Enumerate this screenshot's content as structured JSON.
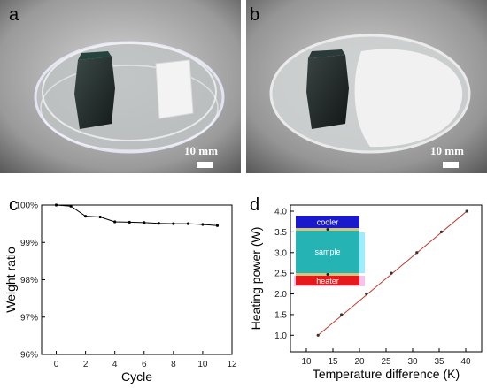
{
  "panels": {
    "a": {
      "letter": "a",
      "scale_label": "10 mm"
    },
    "b": {
      "letter": "b",
      "scale_label": "10 mm"
    },
    "c": {
      "letter": "c"
    },
    "d": {
      "letter": "d"
    }
  },
  "colors": {
    "line_c": "#000000",
    "line_d": "#c0392b",
    "points_d": "#333333",
    "cooler": "#1a1acc",
    "sample": "#26b3b3",
    "sample_glow": "#7fe6ff",
    "heater": "#e61a1a",
    "heater_glow": "#f5b3e6"
  },
  "chart_data": [
    {
      "type": "line",
      "panel": "c",
      "x": [
        0,
        1,
        2,
        3,
        4,
        5,
        6,
        7,
        8,
        9,
        10,
        11
      ],
      "values": [
        100,
        99.97,
        99.7,
        99.68,
        99.55,
        99.54,
        99.53,
        99.51,
        99.5,
        99.5,
        99.48,
        99.45
      ],
      "xlabel": "Cycle",
      "ylabel": "Weight ratio",
      "xlim": [
        -1,
        12
      ],
      "ylim": [
        96,
        100
      ],
      "xticks": [
        "0",
        "2",
        "4",
        "6",
        "8",
        "10",
        "12"
      ],
      "xtick_values": [
        0,
        2,
        4,
        6,
        8,
        10,
        12
      ],
      "yticks": [
        "96%",
        "97%",
        "98%",
        "99%",
        "100%"
      ],
      "ytick_values": [
        96,
        97,
        98,
        99,
        100
      ],
      "grid": false,
      "markers": true
    },
    {
      "type": "scatter",
      "panel": "d",
      "x": [
        12.2,
        16.6,
        21.3,
        26.0,
        30.8,
        35.4,
        40.2
      ],
      "values": [
        1.0,
        1.5,
        2.0,
        2.5,
        3.0,
        3.5,
        4.0
      ],
      "fit_line": true,
      "xlabel": "Temperature difference (K)",
      "ylabel": "Heating power (W)",
      "xlim": [
        7,
        43
      ],
      "ylim": [
        0.6,
        4.15
      ],
      "xticks": [
        "10",
        "15",
        "20",
        "25",
        "30",
        "35",
        "40"
      ],
      "xtick_values": [
        10,
        15,
        20,
        25,
        30,
        35,
        40
      ],
      "yticks": [
        "1.0",
        "1.5",
        "2.0",
        "2.5",
        "3.0",
        "3.5",
        "4.0"
      ],
      "ytick_values": [
        1.0,
        1.5,
        2.0,
        2.5,
        3.0,
        3.5,
        4.0
      ],
      "grid": false,
      "inset": {
        "cooler": "cooler",
        "sample": "sample",
        "heater": "heater"
      }
    }
  ]
}
